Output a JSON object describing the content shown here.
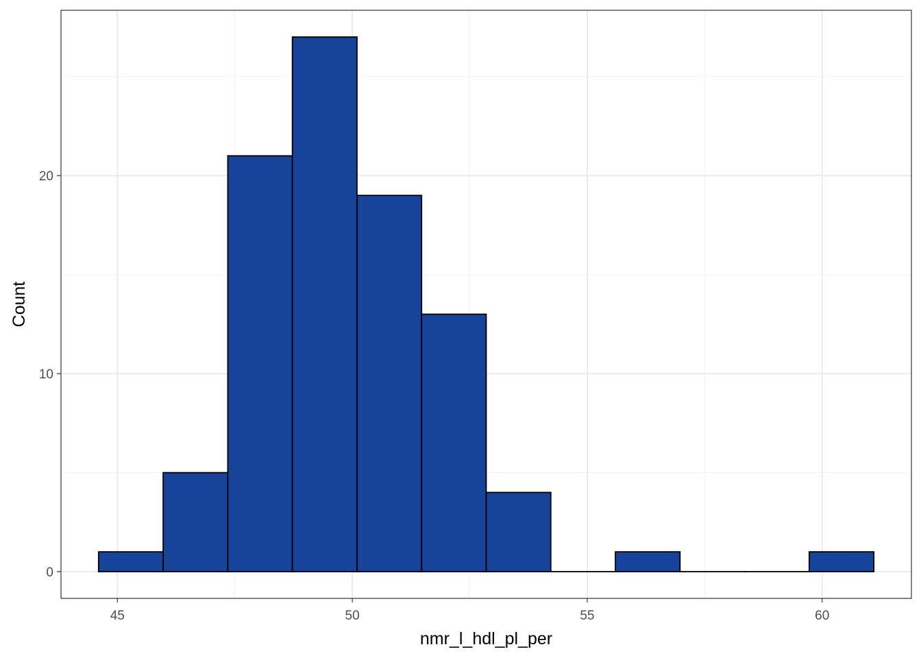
{
  "chart_data": {
    "type": "bar",
    "subtype": "histogram",
    "title": "",
    "xlabel": "nmr_l_hdl_pl_per",
    "ylabel": "Count",
    "bin_width": 1.375,
    "bins": [
      {
        "x_start": 44.6,
        "x_end": 45.975,
        "count": 1
      },
      {
        "x_start": 45.975,
        "x_end": 47.35,
        "count": 5
      },
      {
        "x_start": 47.35,
        "x_end": 48.725,
        "count": 21
      },
      {
        "x_start": 48.725,
        "x_end": 50.1,
        "count": 27
      },
      {
        "x_start": 50.1,
        "x_end": 51.475,
        "count": 19
      },
      {
        "x_start": 51.475,
        "x_end": 52.85,
        "count": 13
      },
      {
        "x_start": 52.85,
        "x_end": 54.225,
        "count": 4
      },
      {
        "x_start": 54.225,
        "x_end": 55.6,
        "count": 0
      },
      {
        "x_start": 55.6,
        "x_end": 56.975,
        "count": 1
      },
      {
        "x_start": 56.975,
        "x_end": 58.35,
        "count": 0
      },
      {
        "x_start": 58.35,
        "x_end": 59.725,
        "count": 0
      },
      {
        "x_start": 59.725,
        "x_end": 61.1,
        "count": 1
      }
    ],
    "xlim": [
      43.8,
      61.9
    ],
    "ylim": [
      -1.35,
      28.35
    ],
    "x_ticks": [
      45,
      50,
      55,
      60
    ],
    "y_ticks": [
      0,
      10,
      20
    ],
    "x_minor_gridlines": [
      47.5,
      52.5,
      57.5
    ],
    "y_minor_gridlines": [
      5,
      15,
      25
    ],
    "grid": true,
    "legend": "none",
    "colors": {
      "bar_fill": "#17449a",
      "bar_stroke": "#000000",
      "grid_major": "#ebebeb",
      "grid_minor": "#f4f4f4",
      "panel_border": "#333333",
      "tick_text": "#4d4d4d"
    }
  }
}
